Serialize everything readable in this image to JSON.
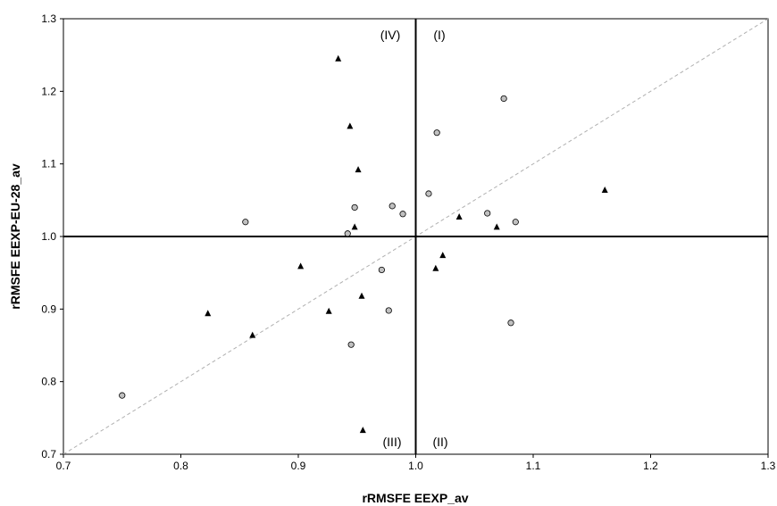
{
  "chart_data": {
    "type": "scatter",
    "title": "",
    "xlabel": "rRMSFE EEXP_av",
    "ylabel": "rRMSFE EEXP-EU-28_av",
    "xlim": [
      0.7,
      1.3
    ],
    "ylim": [
      0.7,
      1.3
    ],
    "xticks": [
      "0.7",
      "0.8",
      "0.9",
      "1.0",
      "1.1",
      "1.2",
      "1.3"
    ],
    "yticks": [
      "0.7",
      "0.8",
      "0.9",
      "1.0",
      "1.1",
      "1.2",
      "1.3"
    ],
    "grid": false,
    "reference_lines": {
      "vertical_x": 1.0,
      "horizontal_y": 1.0,
      "diagonal": "y = x (dashed)"
    },
    "quadrant_labels": {
      "I": "(I)",
      "II": "(II)",
      "III": "(III)",
      "IV": "(IV)"
    },
    "series": [
      {
        "marker": "circle",
        "color": "#c0c0c0",
        "points": [
          {
            "x": 0.75,
            "y": 0.781
          },
          {
            "x": 0.855,
            "y": 1.02
          },
          {
            "x": 0.942,
            "y": 1.004
          },
          {
            "x": 0.945,
            "y": 0.851
          },
          {
            "x": 0.948,
            "y": 1.04
          },
          {
            "x": 0.971,
            "y": 0.954
          },
          {
            "x": 0.977,
            "y": 0.898
          },
          {
            "x": 0.98,
            "y": 1.042
          },
          {
            "x": 0.989,
            "y": 1.031
          },
          {
            "x": 1.011,
            "y": 1.059
          },
          {
            "x": 1.018,
            "y": 1.143
          },
          {
            "x": 1.061,
            "y": 1.032
          },
          {
            "x": 1.075,
            "y": 1.19
          },
          {
            "x": 1.081,
            "y": 0.881
          },
          {
            "x": 1.085,
            "y": 1.02
          }
        ]
      },
      {
        "marker": "triangle",
        "color": "#000000",
        "points": [
          {
            "x": 0.823,
            "y": 0.894
          },
          {
            "x": 0.861,
            "y": 0.864
          },
          {
            "x": 0.902,
            "y": 0.959
          },
          {
            "x": 0.926,
            "y": 0.897
          },
          {
            "x": 0.934,
            "y": 1.245
          },
          {
            "x": 0.944,
            "y": 1.152
          },
          {
            "x": 0.948,
            "y": 1.013
          },
          {
            "x": 0.951,
            "y": 1.092
          },
          {
            "x": 0.954,
            "y": 0.918
          },
          {
            "x": 0.955,
            "y": 0.733
          },
          {
            "x": 1.017,
            "y": 0.956
          },
          {
            "x": 1.023,
            "y": 0.974
          },
          {
            "x": 1.037,
            "y": 1.027
          },
          {
            "x": 1.069,
            "y": 1.013
          },
          {
            "x": 1.161,
            "y": 1.064
          }
        ]
      }
    ]
  }
}
